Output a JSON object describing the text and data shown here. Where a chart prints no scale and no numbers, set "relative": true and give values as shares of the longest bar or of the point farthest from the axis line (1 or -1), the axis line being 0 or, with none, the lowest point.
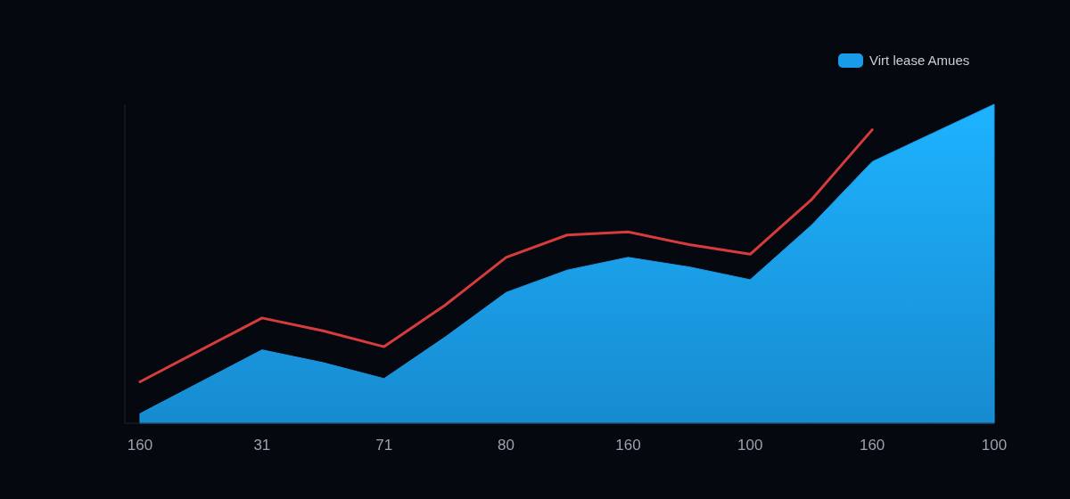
{
  "chart_data": {
    "type": "area",
    "relative": true,
    "legend": "top right",
    "categories": [
      "160",
      null,
      "31",
      null,
      "71",
      null,
      "80",
      null,
      "160",
      null,
      "100",
      null,
      "160",
      null,
      "100"
    ],
    "series": [
      {
        "name": "Virt lease Amues",
        "color": "#1a9be8",
        "values": [
          0.03,
          0.13,
          0.23,
          0.19,
          0.14,
          0.27,
          0.41,
          0.48,
          0.52,
          0.49,
          0.45,
          0.62,
          0.82,
          0.91,
          1
        ]
      },
      {
        "type": "line",
        "color": "#d63c3c",
        "values": [
          0.13,
          0.23,
          0.33,
          0.29,
          0.24,
          0.37,
          0.52,
          0.59,
          0.6,
          0.56,
          0.53,
          0.7,
          0.92,
          null,
          null
        ]
      }
    ]
  }
}
